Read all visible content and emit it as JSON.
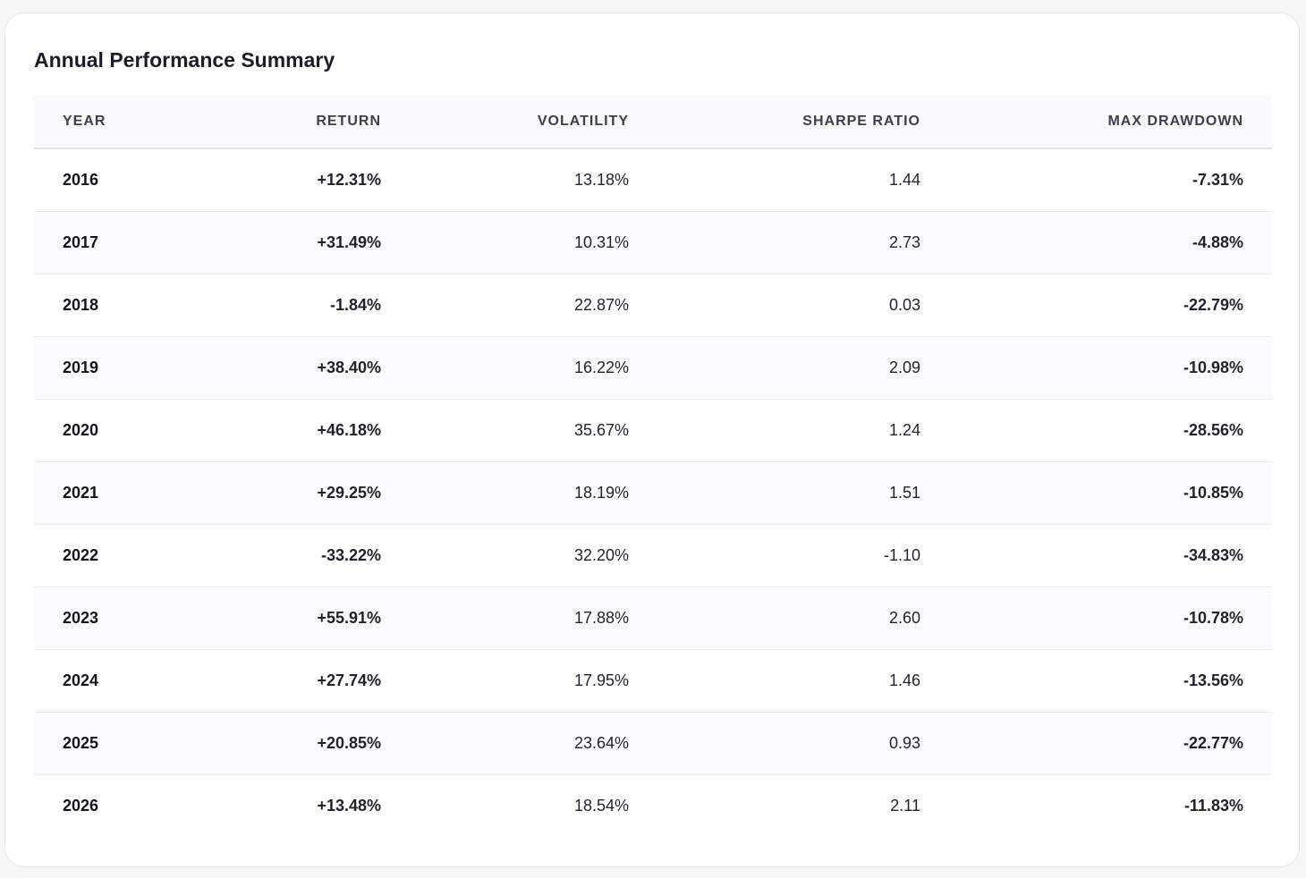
{
  "title": "Annual Performance Summary",
  "columns": {
    "year": "YEAR",
    "return": "RETURN",
    "volatility": "VOLATILITY",
    "sharpe": "SHARPE RATIO",
    "max_drawdown": "MAX DRAWDOWN"
  },
  "colors": {
    "positive": "#1e9a47",
    "negative": "#c62828"
  },
  "rows": [
    {
      "year": "2016",
      "return": "+12.31%",
      "volatility": "13.18%",
      "sharpe": "1.44",
      "max_drawdown": "-7.31%"
    },
    {
      "year": "2017",
      "return": "+31.49%",
      "volatility": "10.31%",
      "sharpe": "2.73",
      "max_drawdown": "-4.88%"
    },
    {
      "year": "2018",
      "return": "-1.84%",
      "volatility": "22.87%",
      "sharpe": "0.03",
      "max_drawdown": "-22.79%"
    },
    {
      "year": "2019",
      "return": "+38.40%",
      "volatility": "16.22%",
      "sharpe": "2.09",
      "max_drawdown": "-10.98%"
    },
    {
      "year": "2020",
      "return": "+46.18%",
      "volatility": "35.67%",
      "sharpe": "1.24",
      "max_drawdown": "-28.56%"
    },
    {
      "year": "2021",
      "return": "+29.25%",
      "volatility": "18.19%",
      "sharpe": "1.51",
      "max_drawdown": "-10.85%"
    },
    {
      "year": "2022",
      "return": "-33.22%",
      "volatility": "32.20%",
      "sharpe": "-1.10",
      "max_drawdown": "-34.83%"
    },
    {
      "year": "2023",
      "return": "+55.91%",
      "volatility": "17.88%",
      "sharpe": "2.60",
      "max_drawdown": "-10.78%"
    },
    {
      "year": "2024",
      "return": "+27.74%",
      "volatility": "17.95%",
      "sharpe": "1.46",
      "max_drawdown": "-13.56%"
    },
    {
      "year": "2025",
      "return": "+20.85%",
      "volatility": "23.64%",
      "sharpe": "0.93",
      "max_drawdown": "-22.77%"
    },
    {
      "year": "2026",
      "return": "+13.48%",
      "volatility": "18.54%",
      "sharpe": "2.11",
      "max_drawdown": "-11.83%"
    }
  ]
}
